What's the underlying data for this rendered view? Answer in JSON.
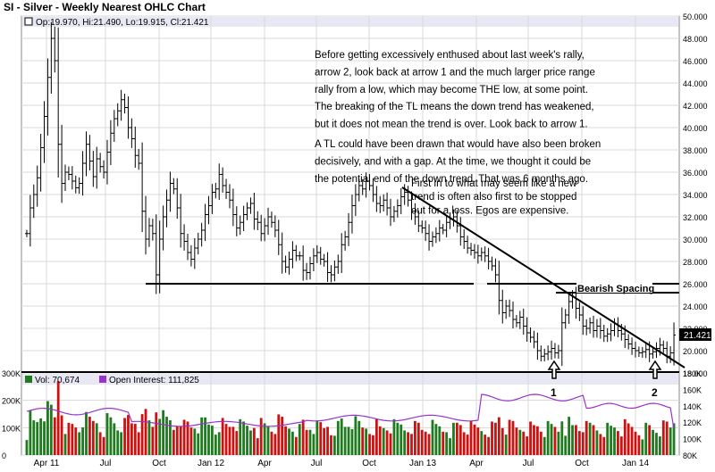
{
  "title": "SI - Silver - Weekly Nearest OHLC Chart",
  "ohlc_readout": "Op:19.970, Hi:21.490, Lo:19.915, Cl:21.421",
  "volume_legend": "Vol: 70,674",
  "oi_legend": "Open Interest: 111,825",
  "last_price_label": "21.421",
  "annotations": {
    "para1": [
      "Before getting excessively enthused about last week's rally,",
      "arrow 2, look back at arrow 1 and the much larger price range",
      "rally from a low, which may become THE low, at some point.",
      "The breaking of the TL means the down trend has weakened,",
      "but it does not mean the trend is over.  Look back to arrow 1."
    ],
    "para2": [
      "A TL could have been drawn that would have also been broken",
      "decisively, and with a gap.  At the time, we thought it could be",
      "the potential end of the down trend.  That was 6 months ago."
    ],
    "para3": [
      "First in to what may seem like a new",
      "trend is often also first to be stopped",
      "out for a loss.  Egos are expensive."
    ],
    "bearish_spacing": "Bearish Spacing",
    "arrow1": "1",
    "arrow2": "2"
  },
  "colors": {
    "up_volume": "#1e7b1e",
    "down_volume": "#cc1111",
    "open_interest": "#9933cc",
    "price_bars": "#000000",
    "grid": "#d8d8d8"
  },
  "chart_data": {
    "type": "ohlc",
    "title": "SI - Silver - Weekly Nearest OHLC Chart",
    "price_axis": {
      "ylim": [
        18,
        50
      ],
      "ticks": [
        "50.000",
        "48.000",
        "46.000",
        "44.000",
        "42.000",
        "40.000",
        "38.000",
        "36.000",
        "34.000",
        "32.000",
        "30.000",
        "28.000",
        "26.000",
        "24.000",
        "22.000",
        "20.000",
        "18.000"
      ]
    },
    "x_tick_labels": [
      "Apr 11",
      "Jul",
      "Oct",
      "Jan 12",
      "Apr",
      "Jul",
      "Oct",
      "Jan 13",
      "Apr",
      "Jul",
      "Oct",
      "Jan 14"
    ],
    "volume_axis": {
      "ylim": [
        0,
        300000
      ],
      "ticks": [
        "300K",
        "200K",
        "100K",
        "0"
      ]
    },
    "oi_axis": {
      "ylim": [
        80000,
        180000
      ],
      "ticks": [
        "180K",
        "160K",
        "140K",
        "120K",
        "100K",
        "80K"
      ]
    },
    "last_bar": {
      "open": 19.97,
      "high": 21.49,
      "low": 19.915,
      "close": 21.421
    },
    "last_volume": 70674,
    "last_open_interest": 111825,
    "weekly_close": [
      30.5,
      32.8,
      34.0,
      35.5,
      38.2,
      41.0,
      44.5,
      48.0,
      46.0,
      38.5,
      35.0,
      36.0,
      35.8,
      35.2,
      34.6,
      35.0,
      36.8,
      38.5,
      37.0,
      35.6,
      37.2,
      36.5,
      36.0,
      37.8,
      39.5,
      40.8,
      41.5,
      42.5,
      41.8,
      40.0,
      39.0,
      37.5,
      36.8,
      32.5,
      30.0,
      31.2,
      30.5,
      26.8,
      30.0,
      32.0,
      33.5,
      35.0,
      34.5,
      32.8,
      30.5,
      29.8,
      28.8,
      28.2,
      29.2,
      30.0,
      30.8,
      32.2,
      33.0,
      34.2,
      34.5,
      35.8,
      34.8,
      34.2,
      33.5,
      32.2,
      31.0,
      31.5,
      32.2,
      32.8,
      33.2,
      31.8,
      31.5,
      30.5,
      31.2,
      32.0,
      31.5,
      30.8,
      29.5,
      28.0,
      27.5,
      28.2,
      29.0,
      28.5,
      28.5,
      27.2,
      27.0,
      27.8,
      28.5,
      28.8,
      28.2,
      28.0,
      27.0,
      26.8,
      27.5,
      28.0,
      29.5,
      30.2,
      31.5,
      33.0,
      34.0,
      34.8,
      34.5,
      35.2,
      34.8,
      34.0,
      33.2,
      33.0,
      33.5,
      32.8,
      32.0,
      32.5,
      33.0,
      33.8,
      34.2,
      33.5,
      32.5,
      32.0,
      31.2,
      31.0,
      30.5,
      29.8,
      30.2,
      30.5,
      31.0,
      30.8,
      31.5,
      31.8,
      32.0,
      31.2,
      30.2,
      29.8,
      29.2,
      29.0,
      28.8,
      28.5,
      28.8,
      28.5,
      28.0,
      27.6,
      26.8,
      24.5,
      23.4,
      24.0,
      23.6,
      22.8,
      22.5,
      23.0,
      22.2,
      21.6,
      21.2,
      20.8,
      20.0,
      19.5,
      19.7,
      19.9,
      20.2,
      19.8,
      20.0,
      22.5,
      23.2,
      24.4,
      24.8,
      23.8,
      23.2,
      22.2,
      22.0,
      22.5,
      21.8,
      22.2,
      21.8,
      21.3,
      21.5,
      21.8,
      22.4,
      21.8,
      21.5,
      21.0,
      20.6,
      20.2,
      20.0,
      19.8,
      19.9,
      20.1,
      19.7,
      19.9,
      20.2,
      20.5,
      20.2,
      19.5,
      19.8,
      21.4
    ],
    "trendline": {
      "from_label": "Jan 13",
      "from_value": 34.5,
      "to_label": "Jan 14",
      "to_value": 20.5
    },
    "horizontal_lines": [
      {
        "value": 25.9,
        "segment": "Oct 11 to Apr 13"
      },
      {
        "value": 25.9,
        "segment": "Apr 13 to end"
      },
      {
        "value": 25.2,
        "segment": "Jul 13 to end"
      }
    ]
  }
}
